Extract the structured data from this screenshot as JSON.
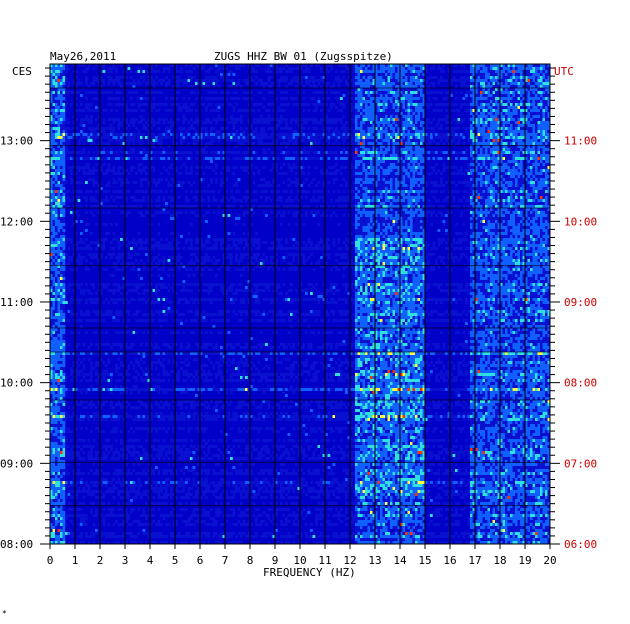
{
  "header": {
    "date": "May26,2011",
    "station": "ZUGS HHZ BW 01 (Zugsspitze)"
  },
  "chart_data": {
    "type": "heatmap",
    "title": "ZUGS HHZ BW 01 (Zugsspitze)",
    "date": "May26,2011",
    "xlabel": "FREQUENCY (HZ)",
    "xlim": [
      0,
      20
    ],
    "x_ticks": [
      "0",
      "1",
      "2",
      "3",
      "4",
      "5",
      "6",
      "7",
      "8",
      "9",
      "10",
      "11",
      "12",
      "13",
      "14",
      "15",
      "16",
      "17",
      "18",
      "19",
      "20"
    ],
    "left_axis": {
      "zone_label": "CES",
      "ticks": [
        {
          "hour": 13,
          "label": "13:00"
        },
        {
          "hour": 12,
          "label": "12:00"
        },
        {
          "hour": 11,
          "label": "11:00"
        },
        {
          "hour": 10,
          "label": "10:00"
        },
        {
          "hour": 9,
          "label": "09:00"
        },
        {
          "hour": 8,
          "label": "08:00"
        }
      ],
      "ylim": [
        8,
        13.95
      ]
    },
    "right_axis": {
      "zone_label": "UTC",
      "ticks": [
        {
          "hour": 13,
          "label": "11:00"
        },
        {
          "hour": 12,
          "label": "10:00"
        },
        {
          "hour": 11,
          "label": "09:00"
        },
        {
          "hour": 10,
          "label": "08:00"
        },
        {
          "hour": 9,
          "label": "07:00"
        },
        {
          "hour": 8,
          "label": "06:00"
        }
      ]
    },
    "grid": true,
    "colors": {
      "background": "#0000c8",
      "low": "#0a10d0",
      "mid": "#1060ff",
      "high": "#30e0e0",
      "peak": "#ffff40",
      "max": "#ff3000",
      "grid": "#000000",
      "utc_text": "#cc0000"
    },
    "bands": [
      {
        "from_hz": 0.0,
        "to_hz": 0.6,
        "intensity": 0.85
      },
      {
        "from_hz": 12.2,
        "to_hz": 15.0,
        "intensity": 0.65
      },
      {
        "from_hz": 16.8,
        "to_hz": 20.0,
        "intensity": 0.7
      }
    ]
  },
  "footer": {
    "mark": "*"
  }
}
